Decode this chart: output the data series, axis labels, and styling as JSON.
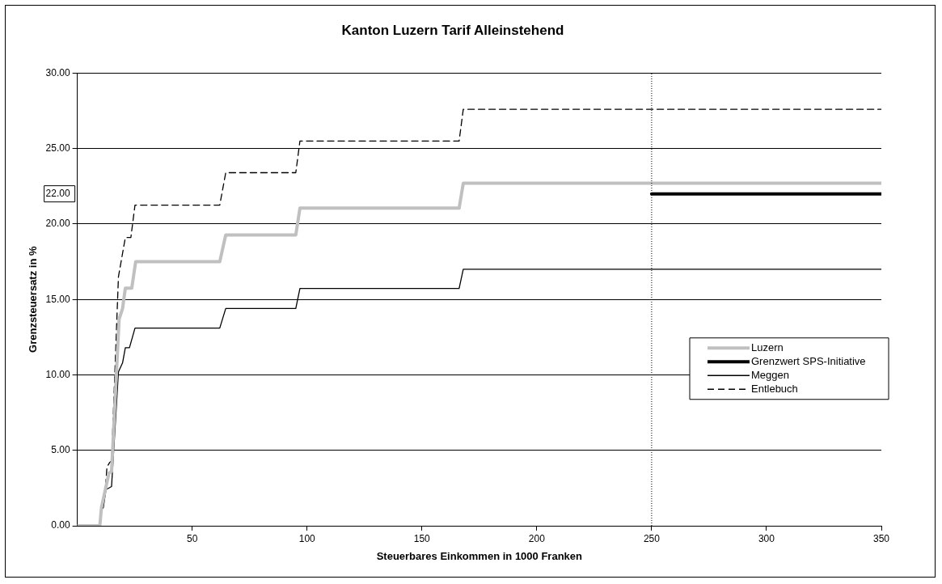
{
  "chart_data": {
    "type": "line",
    "title": "Kanton Luzern Tarif Alleinstehend",
    "xlabel": "Steuerbares Einkommen in 1000 Franken",
    "ylabel": "Grenzsteuersatz in %",
    "xlim": [
      0,
      350
    ],
    "xticks": [
      50,
      100,
      150,
      200,
      250,
      300,
      350
    ],
    "ylim": [
      0,
      30
    ],
    "yticks": [
      {
        "value": 0,
        "label": "0.00"
      },
      {
        "value": 5,
        "label": "5.00"
      },
      {
        "value": 10,
        "label": "10.00"
      },
      {
        "value": 15,
        "label": "15.00"
      },
      {
        "value": 20,
        "label": "20.00"
      },
      {
        "value": 22,
        "label": "22.00"
      },
      {
        "value": 25,
        "label": "25.00"
      },
      {
        "value": 30,
        "label": "30.00"
      }
    ],
    "grid": "y",
    "legend": "right",
    "marker": "none",
    "series": [
      {
        "name": "Luzern",
        "color": "#c0c0c0",
        "line_style": "solid",
        "x": [
          0,
          9.8,
          10.5,
          12.2,
          13.8,
          14.9,
          18.2,
          19.7,
          20.9,
          23.7,
          25.4,
          62,
          64.6,
          95.1,
          96.9,
          166.2,
          168,
          350
        ],
        "values": [
          0,
          0,
          1.2,
          2.4,
          3.5,
          3.6,
          13.7,
          14.4,
          15.75,
          15.75,
          17.5,
          17.5,
          19.27,
          19.27,
          21.05,
          21.05,
          22.7,
          22.7
        ]
      },
      {
        "name": "Grenzwert SPS-Initiative",
        "color": "#000000",
        "line_style": "solid",
        "x": [
          250,
          350
        ],
        "values": [
          22,
          22
        ]
      },
      {
        "name": "Meggen",
        "color": "#000000",
        "line_style": "solid",
        "x": [
          0,
          9.8,
          10.5,
          11.3,
          12.5,
          14.9,
          17.9,
          19.7,
          20.9,
          22.7,
          25.1,
          62,
          64.6,
          95.1,
          96.9,
          166.2,
          168,
          350
        ],
        "values": [
          0,
          0,
          1.05,
          1.2,
          2.4,
          2.6,
          10.2,
          10.8,
          11.8,
          11.8,
          13.1,
          13.1,
          14.4,
          14.4,
          15.73,
          15.73,
          17.0,
          17.0
        ]
      },
      {
        "name": "Entlebuch",
        "color": "#000000",
        "line_style": "dashed",
        "x": [
          0,
          9.8,
          10.8,
          12.0,
          12.9,
          14.1,
          14.9,
          17.9,
          20.9,
          23.3,
          25.1,
          62,
          64.6,
          95.1,
          96.9,
          166.2,
          168,
          350
        ],
        "values": [
          0,
          0,
          1.5,
          2.0,
          3.9,
          4.2,
          4.3,
          16.5,
          19.1,
          19.1,
          21.25,
          21.25,
          23.4,
          23.4,
          25.5,
          25.5,
          27.6,
          27.6
        ]
      }
    ],
    "ref_lines": [
      {
        "axis": "x",
        "value": 250,
        "line_style": "dotted",
        "color": "#000000"
      }
    ]
  }
}
